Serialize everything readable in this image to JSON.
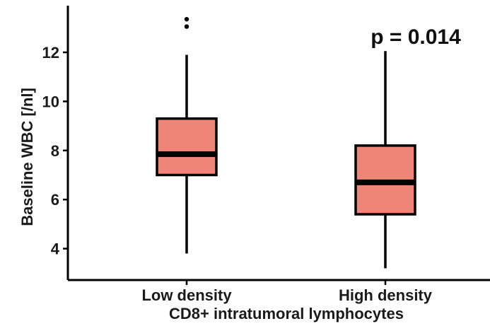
{
  "chart_data": {
    "type": "box",
    "xlabel": "CD8+ intratumoral lymphocytes",
    "ylabel": "Baseline WBC [/nl]",
    "ylim": [
      3.0,
      13.9
    ],
    "yticks": [
      4,
      6,
      8,
      10,
      12
    ],
    "grid": false,
    "annotation": "p = 0.014",
    "box_color": "#ee8577",
    "categories": [
      "Low density",
      "High density"
    ],
    "boxes": [
      {
        "category": "Low density",
        "min": 3.8,
        "q1": 7.0,
        "median": 7.85,
        "q3": 9.3,
        "max": 11.9,
        "outliers": [
          13.05,
          13.35
        ]
      },
      {
        "category": "High density",
        "min": 3.2,
        "q1": 5.4,
        "median": 6.7,
        "q3": 8.2,
        "max": 12.05,
        "outliers": []
      }
    ]
  }
}
